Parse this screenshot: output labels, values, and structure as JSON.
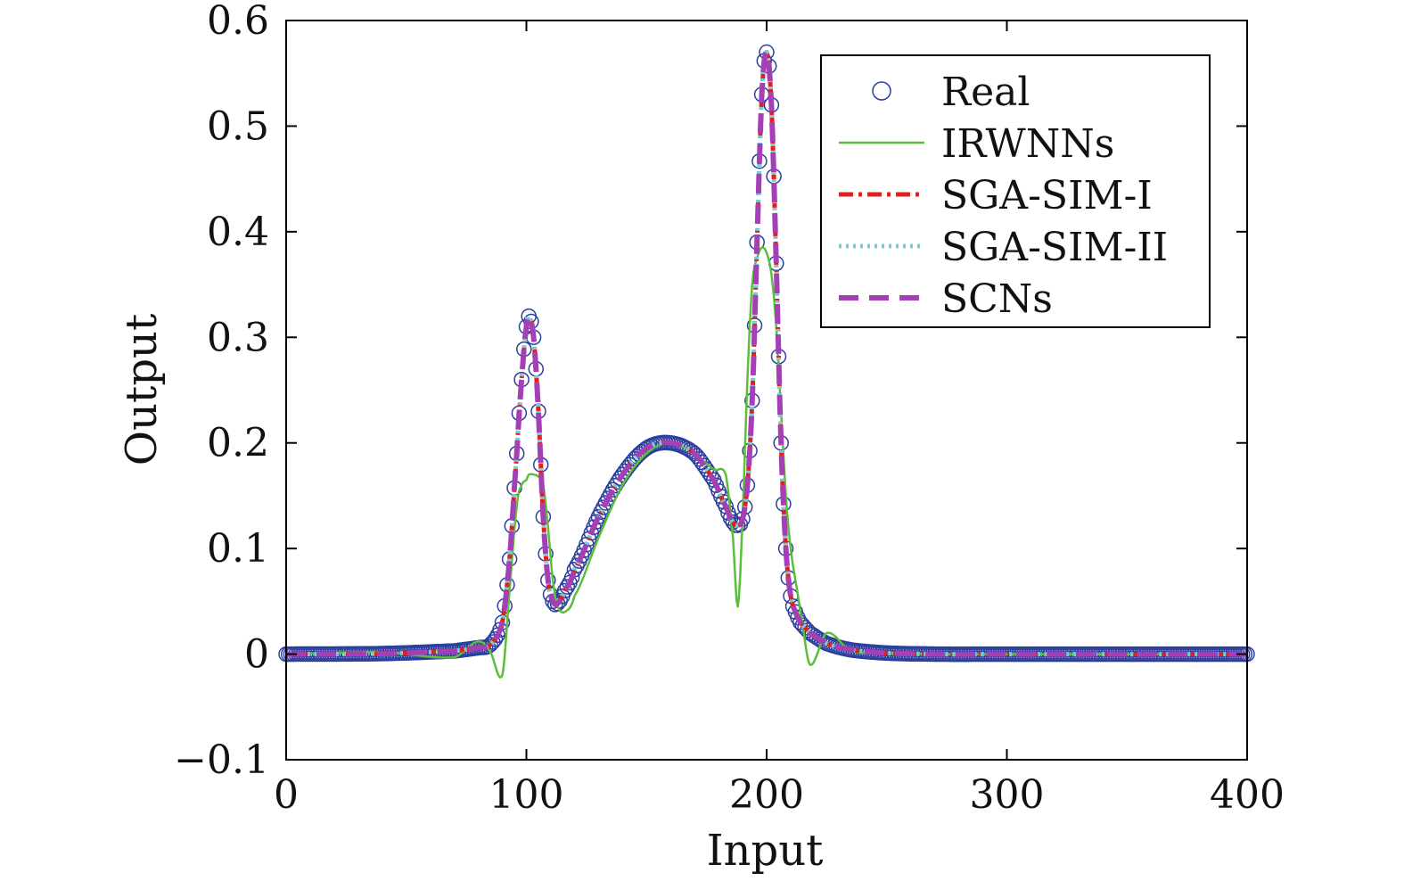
{
  "chart_data": {
    "type": "line",
    "title": "",
    "xlabel": "Input",
    "ylabel": "Output",
    "xlim": [
      0,
      400
    ],
    "ylim": [
      -0.1,
      0.6
    ],
    "xticks": [
      0,
      100,
      200,
      300,
      400
    ],
    "xtick_labels": [
      "0",
      "100",
      "200",
      "300",
      "400"
    ],
    "yticks": [
      -0.1,
      0,
      0.1,
      0.2,
      0.3,
      0.4,
      0.5,
      0.6
    ],
    "ytick_labels": [
      "−0.1",
      "0",
      "0.1",
      "0.2",
      "0.3",
      "0.4",
      "0.5",
      "0.6"
    ],
    "grid": false,
    "legend_position": "top-right",
    "x": [
      0,
      40,
      70,
      80,
      85,
      90,
      93,
      96,
      98,
      100,
      101,
      103,
      105,
      107,
      109,
      111,
      113,
      116,
      120,
      130,
      140,
      150,
      160,
      170,
      178,
      183,
      186,
      188,
      190,
      192,
      194,
      196,
      198,
      200,
      202,
      204,
      206,
      208,
      210,
      212,
      214,
      218,
      225,
      235,
      250,
      270,
      300,
      350,
      400
    ],
    "series": [
      {
        "name": "Real",
        "style": "markers",
        "color": "#2b3f9e",
        "values": [
          0,
          0.0005,
          0.003,
          0.006,
          0.009,
          0.03,
          0.09,
          0.19,
          0.26,
          0.31,
          0.32,
          0.3,
          0.23,
          0.13,
          0.07,
          0.05,
          0.048,
          0.06,
          0.08,
          0.13,
          0.17,
          0.195,
          0.2,
          0.19,
          0.165,
          0.14,
          0.125,
          0.122,
          0.128,
          0.16,
          0.24,
          0.39,
          0.53,
          0.57,
          0.52,
          0.37,
          0.2,
          0.1,
          0.055,
          0.04,
          0.03,
          0.02,
          0.01,
          0.004,
          0.001,
          0,
          0,
          0,
          0
        ]
      },
      {
        "name": "IRWNNs",
        "style": "solid",
        "color": "#5cbf3a",
        "values": [
          0,
          0.002,
          -0.003,
          0.012,
          0.002,
          -0.02,
          0.06,
          0.14,
          0.16,
          0.165,
          0.17,
          0.17,
          0.168,
          0.16,
          0.12,
          0.07,
          0.045,
          0.04,
          0.055,
          0.11,
          0.16,
          0.19,
          0.2,
          0.19,
          0.175,
          0.17,
          0.11,
          0.045,
          0.13,
          0.26,
          0.35,
          0.375,
          0.385,
          0.38,
          0.36,
          0.31,
          0.23,
          0.15,
          0.1,
          0.07,
          0.04,
          -0.01,
          0.02,
          0.003,
          0.001,
          0,
          0,
          0,
          0
        ]
      },
      {
        "name": "SGA-SIM-I",
        "style": "dashdot",
        "color": "#e02020",
        "values": [
          0,
          0.0005,
          0.003,
          0.006,
          0.009,
          0.03,
          0.09,
          0.19,
          0.26,
          0.31,
          0.32,
          0.3,
          0.23,
          0.13,
          0.07,
          0.05,
          0.048,
          0.06,
          0.08,
          0.13,
          0.17,
          0.195,
          0.2,
          0.19,
          0.165,
          0.14,
          0.125,
          0.122,
          0.128,
          0.16,
          0.24,
          0.39,
          0.53,
          0.57,
          0.52,
          0.37,
          0.2,
          0.1,
          0.055,
          0.04,
          0.03,
          0.02,
          0.01,
          0.004,
          0.001,
          0,
          0,
          0,
          0
        ]
      },
      {
        "name": "SGA-SIM-II",
        "style": "dotted",
        "color": "#6cd0d6",
        "values": [
          0,
          0.0005,
          0.003,
          0.006,
          0.009,
          0.03,
          0.09,
          0.19,
          0.26,
          0.31,
          0.32,
          0.3,
          0.23,
          0.13,
          0.07,
          0.05,
          0.048,
          0.06,
          0.08,
          0.13,
          0.17,
          0.195,
          0.2,
          0.19,
          0.165,
          0.14,
          0.125,
          0.122,
          0.128,
          0.16,
          0.24,
          0.39,
          0.53,
          0.57,
          0.52,
          0.37,
          0.2,
          0.1,
          0.055,
          0.04,
          0.03,
          0.02,
          0.01,
          0.004,
          0.001,
          0,
          0,
          0,
          0
        ]
      },
      {
        "name": "SCNs",
        "style": "dashed",
        "color": "#a43fb5",
        "values": [
          0,
          0.0005,
          0.003,
          0.006,
          0.009,
          0.03,
          0.09,
          0.19,
          0.26,
          0.31,
          0.32,
          0.3,
          0.23,
          0.13,
          0.07,
          0.05,
          0.048,
          0.06,
          0.08,
          0.13,
          0.17,
          0.195,
          0.2,
          0.19,
          0.165,
          0.14,
          0.125,
          0.122,
          0.128,
          0.16,
          0.24,
          0.39,
          0.53,
          0.57,
          0.52,
          0.37,
          0.2,
          0.1,
          0.055,
          0.04,
          0.03,
          0.02,
          0.01,
          0.004,
          0.001,
          0,
          0,
          0,
          0
        ]
      }
    ]
  }
}
